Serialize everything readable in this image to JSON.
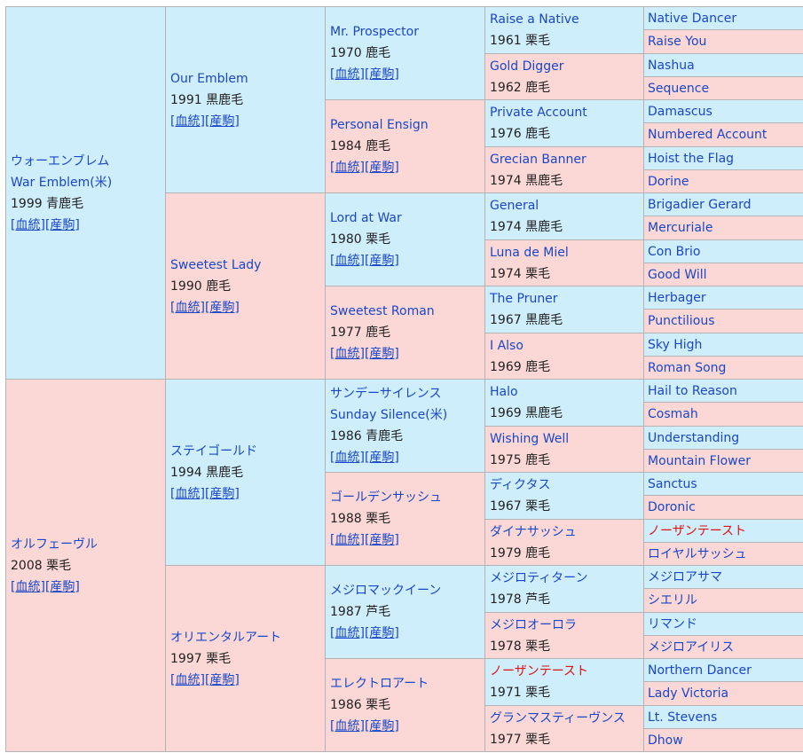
{
  "link_labels": [
    "[血統]",
    "[産駒]"
  ],
  "pedigree": {
    "name": "",
    "extra": "",
    "year": "",
    "sire": {
      "name": "ウォーエンブレム",
      "extra": "War Emblem(米)",
      "year": "1999 青鹿毛",
      "sire": {
        "name": "Our Emblem",
        "year": "1991 黒鹿毛",
        "sire": {
          "name": "Mr. Prospector",
          "year": "1970 鹿毛",
          "sire": {
            "name": "Raise a Native",
            "year": "1961 栗毛",
            "sire": {
              "name": "Native Dancer"
            },
            "dam": {
              "name": "Raise You"
            }
          },
          "dam": {
            "name": "Gold Digger",
            "year": "1962 鹿毛",
            "sire": {
              "name": "Nashua"
            },
            "dam": {
              "name": "Sequence"
            }
          }
        },
        "dam": {
          "name": "Personal Ensign",
          "year": "1984 鹿毛",
          "sire": {
            "name": "Private Account",
            "year": "1976 鹿毛",
            "sire": {
              "name": "Damascus"
            },
            "dam": {
              "name": "Numbered Account"
            }
          },
          "dam": {
            "name": "Grecian Banner",
            "year": "1974 黒鹿毛",
            "sire": {
              "name": "Hoist the Flag"
            },
            "dam": {
              "name": "Dorine"
            }
          }
        }
      },
      "dam": {
        "name": "Sweetest Lady",
        "year": "1990 鹿毛",
        "sire": {
          "name": "Lord at War",
          "year": "1980 栗毛",
          "sire": {
            "name": "General",
            "year": "1974 黒鹿毛",
            "sire": {
              "name": "Brigadier Gerard"
            },
            "dam": {
              "name": "Mercuriale"
            }
          },
          "dam": {
            "name": "Luna de Miel",
            "year": "1974 栗毛",
            "sire": {
              "name": "Con Brio"
            },
            "dam": {
              "name": "Good Will"
            }
          }
        },
        "dam": {
          "name": "Sweetest Roman",
          "year": "1977 鹿毛",
          "sire": {
            "name": "The Pruner",
            "year": "1967 黒鹿毛",
            "sire": {
              "name": "Herbager"
            },
            "dam": {
              "name": "Punctilious"
            }
          },
          "dam": {
            "name": "I Also",
            "year": "1969 鹿毛",
            "sire": {
              "name": "Sky High"
            },
            "dam": {
              "name": "Roman Song"
            }
          }
        }
      }
    },
    "dam": {
      "name": "オルフェーヴル",
      "year": "2008 栗毛",
      "sire": {
        "name": "ステイゴールド",
        "year": "1994 黒鹿毛",
        "sire": {
          "name": "サンデーサイレンス",
          "extra": "Sunday Silence(米)",
          "year": "1986 青鹿毛",
          "sire": {
            "name": "Halo",
            "year": "1969 黒鹿毛",
            "sire": {
              "name": "Hail to Reason"
            },
            "dam": {
              "name": "Cosmah"
            }
          },
          "dam": {
            "name": "Wishing Well",
            "year": "1975 鹿毛",
            "sire": {
              "name": "Understanding"
            },
            "dam": {
              "name": "Mountain Flower"
            }
          }
        },
        "dam": {
          "name": "ゴールデンサッシュ",
          "year": "1988 栗毛",
          "sire": {
            "name": "ディクタス",
            "year": "1967 栗毛",
            "sire": {
              "name": "Sanctus"
            },
            "dam": {
              "name": "Doronic"
            }
          },
          "dam": {
            "name": "ダイナサッシュ",
            "year": "1979 鹿毛",
            "sire": {
              "name": "ノーザンテースト",
              "highlight": true
            },
            "dam": {
              "name": "ロイヤルサッシュ"
            }
          }
        }
      },
      "dam": {
        "name": "オリエンタルアート",
        "year": "1997 栗毛",
        "sire": {
          "name": "メジロマックイーン",
          "year": "1987 芦毛",
          "sire": {
            "name": "メジロティターン",
            "year": "1978 芦毛",
            "sire": {
              "name": "メジロアサマ"
            },
            "dam": {
              "name": "シエリル"
            }
          },
          "dam": {
            "name": "メジロオーロラ",
            "year": "1978 栗毛",
            "sire": {
              "name": "リマンド"
            },
            "dam": {
              "name": "メジロアイリス"
            }
          }
        },
        "dam": {
          "name": "エレクトロアート",
          "year": "1986 栗毛",
          "sire": {
            "name": "ノーザンテースト",
            "year": "1971 栗毛",
            "highlight": true,
            "sire": {
              "name": "Northern Dancer"
            },
            "dam": {
              "name": "Lady Victoria"
            }
          },
          "dam": {
            "name": "グランマスティーヴンス",
            "year": "1977 栗毛",
            "sire": {
              "name": "Lt. Stevens"
            },
            "dam": {
              "name": "Dhow"
            }
          }
        }
      }
    }
  },
  "colors": {
    "sire_bg": "#cfeefb",
    "dam_bg": "#fbd8d6",
    "link": "#1a46c8",
    "highlight": "#e01010",
    "border": "#b3b3b3"
  }
}
